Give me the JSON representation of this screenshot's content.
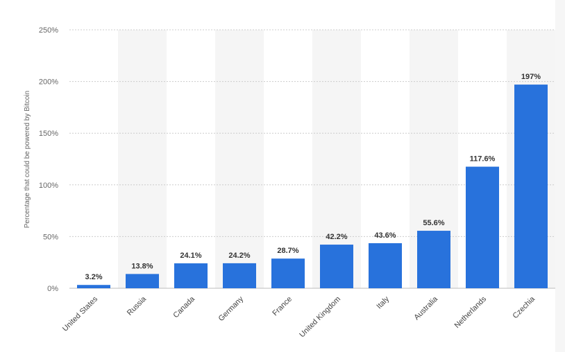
{
  "chart_data": {
    "type": "bar",
    "title": "",
    "xlabel": "",
    "ylabel": "Percentage that could be powered by Bitcoin",
    "ylim": [
      0,
      250
    ],
    "y_ticks": [
      0,
      50,
      100,
      150,
      200,
      250
    ],
    "y_tick_labels": [
      "0%",
      "50%",
      "100%",
      "150%",
      "200%",
      "250%"
    ],
    "categories": [
      "United States",
      "Russia",
      "Canada",
      "Germany",
      "France",
      "United Kingdom",
      "Italy",
      "Australia",
      "Netherlands",
      "Czechia"
    ],
    "values": [
      3.2,
      13.8,
      24.1,
      24.2,
      28.7,
      42.2,
      43.6,
      55.6,
      117.6,
      197
    ],
    "value_labels": [
      "3.2%",
      "13.8%",
      "24.1%",
      "24.2%",
      "28.7%",
      "42.2%",
      "43.6%",
      "55.6%",
      "117.6%",
      "197%"
    ],
    "grid": true,
    "legend": "none",
    "colors": {
      "bar": "#2872dc",
      "band": "#f5f5f5",
      "grid": "#cccccc"
    }
  }
}
